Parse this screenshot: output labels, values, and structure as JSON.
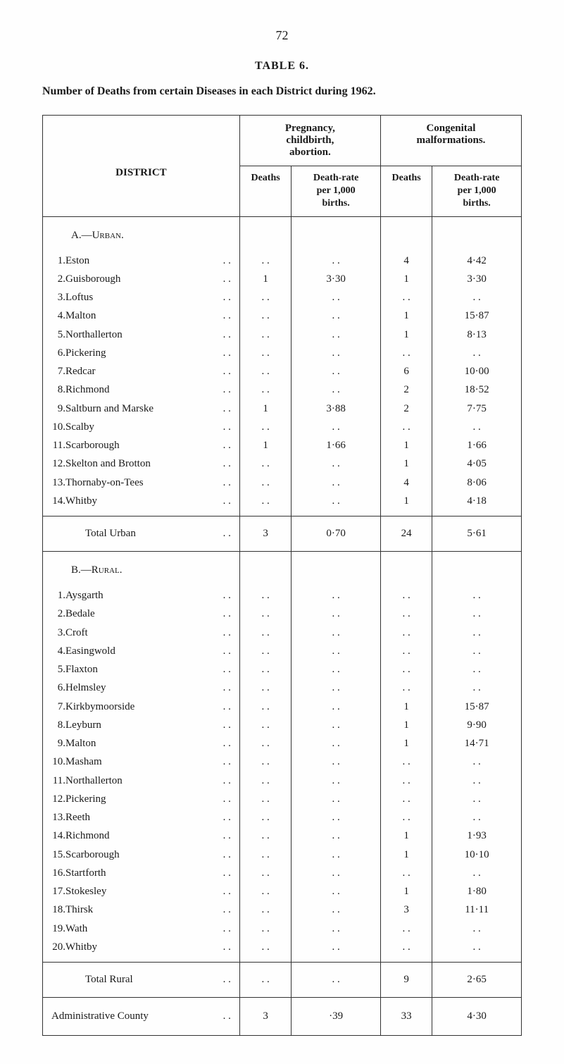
{
  "page_number": "72",
  "table_label": "TABLE 6.",
  "table_title": "Number of Deaths from certain Diseases in each District during 1962.",
  "headers": {
    "district": "DISTRICT",
    "group1": "Pregnancy,\nchildbirth,\nabortion.",
    "group2": "Congenital\nmalformations.",
    "deaths": "Deaths",
    "rate": "Death-rate\nper 1,000\nbirths."
  },
  "sections": [
    {
      "label": "A.—Urban.",
      "rows": [
        {
          "num": "1.",
          "name": "Eston",
          "d1": ". .",
          "r1": ". .",
          "d2": "4",
          "r2": "4·42"
        },
        {
          "num": "2.",
          "name": "Guisborough",
          "d1": "1",
          "r1": "3·30",
          "d2": "1",
          "r2": "3·30"
        },
        {
          "num": "3.",
          "name": "Loftus",
          "d1": ". .",
          "r1": ". .",
          "d2": ". .",
          "r2": ". ."
        },
        {
          "num": "4.",
          "name": "Malton",
          "d1": ". .",
          "r1": ". .",
          "d2": "1",
          "r2": "15·87"
        },
        {
          "num": "5.",
          "name": "Northallerton",
          "d1": ". .",
          "r1": ". .",
          "d2": "1",
          "r2": "8·13"
        },
        {
          "num": "6.",
          "name": "Pickering",
          "d1": ". .",
          "r1": ". .",
          "d2": ". .",
          "r2": ". ."
        },
        {
          "num": "7.",
          "name": "Redcar",
          "d1": ". .",
          "r1": ". .",
          "d2": "6",
          "r2": "10·00"
        },
        {
          "num": "8.",
          "name": "Richmond",
          "d1": ". .",
          "r1": ". .",
          "d2": "2",
          "r2": "18·52"
        },
        {
          "num": "9.",
          "name": "Saltburn and Marske",
          "d1": "1",
          "r1": "3·88",
          "d2": "2",
          "r2": "7·75"
        },
        {
          "num": "10.",
          "name": "Scalby",
          "d1": ". .",
          "r1": ". .",
          "d2": ". .",
          "r2": ". ."
        },
        {
          "num": "11.",
          "name": "Scarborough",
          "d1": "1",
          "r1": "1·66",
          "d2": "1",
          "r2": "1·66"
        },
        {
          "num": "12.",
          "name": "Skelton and Brotton",
          "d1": ". .",
          "r1": ". .",
          "d2": "1",
          "r2": "4·05"
        },
        {
          "num": "13.",
          "name": "Thornaby-on-Tees",
          "d1": ". .",
          "r1": ". .",
          "d2": "4",
          "r2": "8·06"
        },
        {
          "num": "14.",
          "name": "Whitby",
          "d1": ". .",
          "r1": ". .",
          "d2": "1",
          "r2": "4·18"
        }
      ],
      "total": {
        "label": "Total Urban",
        "d1": "3",
        "r1": "0·70",
        "d2": "24",
        "r2": "5·61"
      }
    },
    {
      "label": "B.—Rural.",
      "rows": [
        {
          "num": "1.",
          "name": "Aysgarth",
          "d1": ". .",
          "r1": ". .",
          "d2": ". .",
          "r2": ". ."
        },
        {
          "num": "2.",
          "name": "Bedale",
          "d1": ". .",
          "r1": ". .",
          "d2": ". .",
          "r2": ". ."
        },
        {
          "num": "3.",
          "name": "Croft",
          "d1": ". .",
          "r1": ". .",
          "d2": ". .",
          "r2": ". ."
        },
        {
          "num": "4.",
          "name": "Easingwold",
          "d1": ". .",
          "r1": ". .",
          "d2": ". .",
          "r2": ". ."
        },
        {
          "num": "5.",
          "name": "Flaxton",
          "d1": ". .",
          "r1": ". .",
          "d2": ". .",
          "r2": ". ."
        },
        {
          "num": "6.",
          "name": "Helmsley",
          "d1": ". .",
          "r1": ". .",
          "d2": ". .",
          "r2": ". ."
        },
        {
          "num": "7.",
          "name": "Kirkbymoorside",
          "d1": ". .",
          "r1": ". .",
          "d2": "1",
          "r2": "15·87"
        },
        {
          "num": "8.",
          "name": "Leyburn",
          "d1": ". .",
          "r1": ". .",
          "d2": "1",
          "r2": "9·90"
        },
        {
          "num": "9.",
          "name": "Malton",
          "d1": ". .",
          "r1": ". .",
          "d2": "1",
          "r2": "14·71"
        },
        {
          "num": "10.",
          "name": "Masham",
          "d1": ". .",
          "r1": ". .",
          "d2": ". .",
          "r2": ". ."
        },
        {
          "num": "11.",
          "name": "Northallerton",
          "d1": ". .",
          "r1": ". .",
          "d2": ". .",
          "r2": ". ."
        },
        {
          "num": "12.",
          "name": "Pickering",
          "d1": ". .",
          "r1": ". .",
          "d2": ". .",
          "r2": ". ."
        },
        {
          "num": "13.",
          "name": "Reeth",
          "d1": ". .",
          "r1": ". .",
          "d2": ". .",
          "r2": ". ."
        },
        {
          "num": "14.",
          "name": "Richmond",
          "d1": ". .",
          "r1": ". .",
          "d2": "1",
          "r2": "1·93"
        },
        {
          "num": "15.",
          "name": "Scarborough",
          "d1": ". .",
          "r1": ". .",
          "d2": "1",
          "r2": "10·10"
        },
        {
          "num": "16.",
          "name": "Startforth",
          "d1": ". .",
          "r1": ". .",
          "d2": ". .",
          "r2": ". ."
        },
        {
          "num": "17.",
          "name": "Stokesley",
          "d1": ". .",
          "r1": ". .",
          "d2": "1",
          "r2": "1·80"
        },
        {
          "num": "18.",
          "name": "Thirsk",
          "d1": ". .",
          "r1": ". .",
          "d2": "3",
          "r2": "11·11"
        },
        {
          "num": "19.",
          "name": "Wath",
          "d1": ". .",
          "r1": ". .",
          "d2": ". .",
          "r2": ". ."
        },
        {
          "num": "20.",
          "name": "Whitby",
          "d1": ". .",
          "r1": ". .",
          "d2": ". .",
          "r2": ". ."
        }
      ],
      "total": {
        "label": "Total Rural",
        "d1": ". .",
        "r1": ". .",
        "d2": "9",
        "r2": "2·65"
      }
    }
  ],
  "admin": {
    "label": "Administrative County",
    "d1": "3",
    "r1": "·39",
    "d2": "33",
    "r2": "4·30"
  }
}
